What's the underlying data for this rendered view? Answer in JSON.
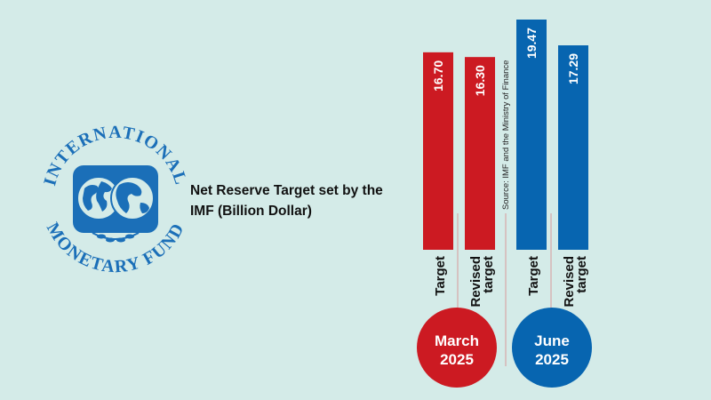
{
  "title": {
    "line1": "Net Reserve Target set by the",
    "line2": "IMF (Billion Dollar)"
  },
  "logo": {
    "ring_text_top": "INTERNATIONAL",
    "ring_text_bottom": "MONETARY FUND",
    "icon": "imf-seal-icon"
  },
  "source_note": "Source: IMF and the Ministry of Finance",
  "colors": {
    "background": "#d4ebe8",
    "march": "#cc1a22",
    "june": "#0765b0",
    "logo": "#1b6fb8",
    "text": "#111111",
    "divider": "#d89a9a"
  },
  "chart_data": {
    "type": "bar",
    "title": "Net Reserve Target set by the IMF (Billion Dollar)",
    "categories": [
      "Target",
      "Revised target",
      "Target",
      "Revised target"
    ],
    "groups": [
      {
        "label_line1": "March",
        "label_line2": "2025",
        "color": "#cc1a22",
        "bars": [
          0,
          1
        ]
      },
      {
        "label_line1": "June",
        "label_line2": "2025",
        "color": "#0765b0",
        "bars": [
          2,
          3
        ]
      }
    ],
    "series": [
      {
        "values": [
          16.7,
          16.3,
          19.47,
          17.29
        ]
      }
    ],
    "value_labels": [
      "16.70",
      "16.30",
      "19.47",
      "17.29"
    ],
    "bar_label_lines": [
      [
        "Target"
      ],
      [
        "Revised",
        "target"
      ],
      [
        "Target"
      ],
      [
        "Revised",
        "target"
      ]
    ],
    "ylim": [
      0,
      19.47
    ],
    "grid": false,
    "legend": "none"
  }
}
